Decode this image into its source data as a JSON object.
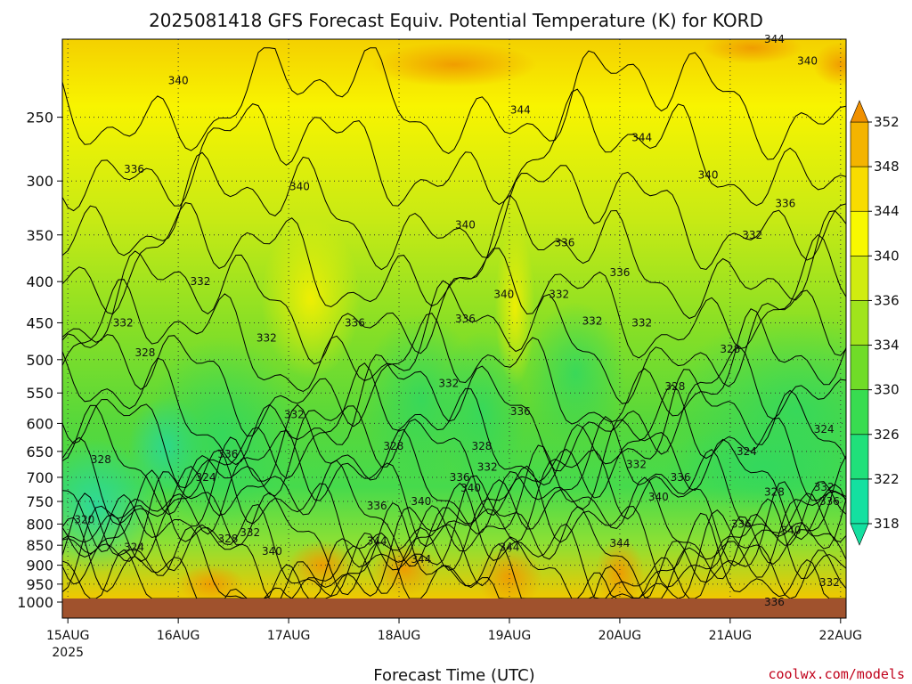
{
  "chart_data": {
    "type": "heatmap",
    "title": "2025081418 GFS Forecast Equiv. Potential Temperature (K) for KORD",
    "xlabel": "Forecast Time (UTC)",
    "ylabel": "",
    "y_scale": "log-pressure, inverted",
    "ylim": [
      1000,
      200
    ],
    "y_ticks": [
      250,
      300,
      350,
      400,
      450,
      500,
      550,
      600,
      650,
      700,
      750,
      800,
      850,
      900,
      950,
      1000
    ],
    "y_tick_labels": [
      "250",
      "300",
      "350",
      "400",
      "450",
      "500",
      "550",
      "600",
      "650",
      "700",
      "750",
      "800",
      "850",
      "900",
      "950",
      "1000"
    ],
    "x_tick_labels": [
      {
        "t": 0,
        "label": "15AUG",
        "sub": "2025"
      },
      {
        "t": 1,
        "label": "16AUG",
        "sub": ""
      },
      {
        "t": 2,
        "label": "17AUG",
        "sub": ""
      },
      {
        "t": 3,
        "label": "18AUG",
        "sub": ""
      },
      {
        "t": 4,
        "label": "19AUG",
        "sub": ""
      },
      {
        "t": 5,
        "label": "20AUG",
        "sub": ""
      },
      {
        "t": 6,
        "label": "21AUG",
        "sub": ""
      },
      {
        "t": 7,
        "label": "22AUG",
        "sub": ""
      }
    ],
    "xlim_days": [
      -0.05,
      7.05
    ],
    "grid": true,
    "colorbar": {
      "levels": [
        318,
        322,
        326,
        330,
        334,
        336,
        340,
        344,
        348,
        352
      ],
      "labels": [
        "318",
        "322",
        "326",
        "330",
        "334",
        "336",
        "340",
        "344",
        "348",
        "352"
      ],
      "colors": [
        "#14e0a0",
        "#20e07a",
        "#38dc50",
        "#70dc28",
        "#a0e41c",
        "#d0ec10",
        "#f8f800",
        "#f8dc00",
        "#f4b400",
        "#f09000"
      ],
      "extend": "both"
    },
    "contour_labels": [
      {
        "t": 1.0,
        "p": 225,
        "v": "340"
      },
      {
        "t": 4.1,
        "p": 245,
        "v": "344"
      },
      {
        "t": 5.2,
        "p": 265,
        "v": "344"
      },
      {
        "t": 6.7,
        "p": 213,
        "v": "340"
      },
      {
        "t": 6.4,
        "p": 200,
        "v": "344"
      },
      {
        "t": 0.6,
        "p": 290,
        "v": "336"
      },
      {
        "t": 2.1,
        "p": 305,
        "v": "340"
      },
      {
        "t": 5.8,
        "p": 295,
        "v": "340"
      },
      {
        "t": 6.5,
        "p": 320,
        "v": "336"
      },
      {
        "t": 6.2,
        "p": 350,
        "v": "332"
      },
      {
        "t": 3.6,
        "p": 340,
        "v": "340"
      },
      {
        "t": 4.5,
        "p": 358,
        "v": "336"
      },
      {
        "t": 5.0,
        "p": 390,
        "v": "336"
      },
      {
        "t": 1.2,
        "p": 400,
        "v": "332"
      },
      {
        "t": 3.95,
        "p": 415,
        "v": "340"
      },
      {
        "t": 4.45,
        "p": 415,
        "v": "332"
      },
      {
        "t": 0.5,
        "p": 450,
        "v": "332"
      },
      {
        "t": 2.6,
        "p": 450,
        "v": "336"
      },
      {
        "t": 3.6,
        "p": 445,
        "v": "336"
      },
      {
        "t": 4.75,
        "p": 448,
        "v": "332"
      },
      {
        "t": 5.2,
        "p": 450,
        "v": "332"
      },
      {
        "t": 0.7,
        "p": 490,
        "v": "328"
      },
      {
        "t": 1.8,
        "p": 470,
        "v": "332"
      },
      {
        "t": 6.0,
        "p": 485,
        "v": "328"
      },
      {
        "t": 3.45,
        "p": 535,
        "v": "332"
      },
      {
        "t": 5.5,
        "p": 540,
        "v": "328"
      },
      {
        "t": 4.1,
        "p": 580,
        "v": "336"
      },
      {
        "t": 2.05,
        "p": 585,
        "v": "332"
      },
      {
        "t": 6.85,
        "p": 610,
        "v": "324"
      },
      {
        "t": 2.95,
        "p": 640,
        "v": "328"
      },
      {
        "t": 3.75,
        "p": 640,
        "v": "328"
      },
      {
        "t": 6.15,
        "p": 650,
        "v": "324"
      },
      {
        "t": 1.45,
        "p": 655,
        "v": "336"
      },
      {
        "t": 0.3,
        "p": 665,
        "v": "328"
      },
      {
        "t": 3.8,
        "p": 680,
        "v": "332"
      },
      {
        "t": 5.15,
        "p": 675,
        "v": "332"
      },
      {
        "t": 1.25,
        "p": 700,
        "v": "324"
      },
      {
        "t": 3.55,
        "p": 700,
        "v": "336"
      },
      {
        "t": 5.55,
        "p": 700,
        "v": "336"
      },
      {
        "t": 3.65,
        "p": 722,
        "v": "340"
      },
      {
        "t": 6.4,
        "p": 730,
        "v": "328"
      },
      {
        "t": 6.85,
        "p": 720,
        "v": "332"
      },
      {
        "t": 5.35,
        "p": 740,
        "v": "340"
      },
      {
        "t": 6.9,
        "p": 750,
        "v": "336"
      },
      {
        "t": 2.8,
        "p": 760,
        "v": "336"
      },
      {
        "t": 3.2,
        "p": 750,
        "v": "340"
      },
      {
        "t": 0.15,
        "p": 790,
        "v": "320"
      },
      {
        "t": 6.1,
        "p": 800,
        "v": "336"
      },
      {
        "t": 6.55,
        "p": 815,
        "v": "340"
      },
      {
        "t": 1.65,
        "p": 820,
        "v": "332"
      },
      {
        "t": 1.45,
        "p": 835,
        "v": "328"
      },
      {
        "t": 0.6,
        "p": 855,
        "v": "324"
      },
      {
        "t": 2.8,
        "p": 840,
        "v": "344"
      },
      {
        "t": 1.85,
        "p": 865,
        "v": "340"
      },
      {
        "t": 3.2,
        "p": 885,
        "v": "344"
      },
      {
        "t": 4.0,
        "p": 855,
        "v": "344"
      },
      {
        "t": 5.0,
        "p": 845,
        "v": "344"
      },
      {
        "t": 6.9,
        "p": 945,
        "v": "332"
      },
      {
        "t": 6.4,
        "p": 1000,
        "v": "336"
      }
    ]
  },
  "credit": "coolwx.com/models"
}
